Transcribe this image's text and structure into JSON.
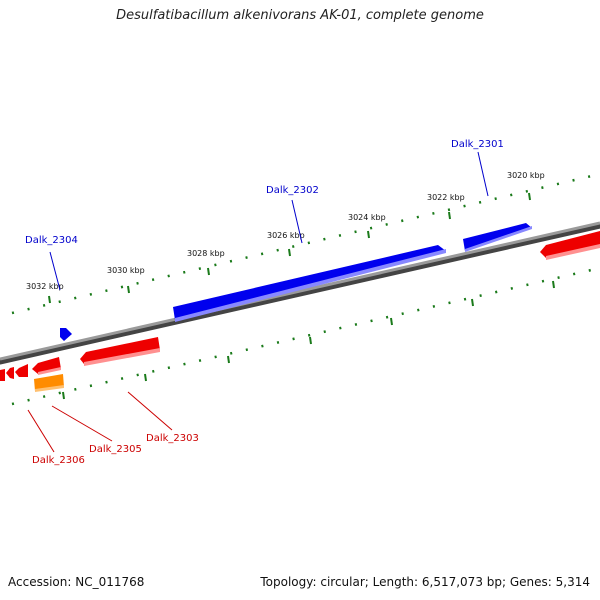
{
  "title": "Desulfatibacillum alkenivorans AK-01, complete genome",
  "footer": {
    "accession": "Accession: NC_011768",
    "topology": "Topology: circular; Length: 6,517,073 bp; Genes: 5,314"
  },
  "scale_labels": [
    "3032 kbp",
    "3030 kbp",
    "3028 kbp",
    "3026 kbp",
    "3024 kbp",
    "3022 kbp",
    "3020 kbp"
  ],
  "gene_labels": {
    "forward": [
      "Dalk_2304",
      "Dalk_2302",
      "Dalk_2301"
    ],
    "reverse": [
      "Dalk_2306",
      "Dalk_2305",
      "Dalk_2303"
    ]
  },
  "colors": {
    "forward_gene": "#0000ee",
    "reverse_gene": "#ee0000",
    "other_gene": "#ff8c00",
    "backbone": "#808080",
    "tick_marks": "#1a7a1a"
  }
}
